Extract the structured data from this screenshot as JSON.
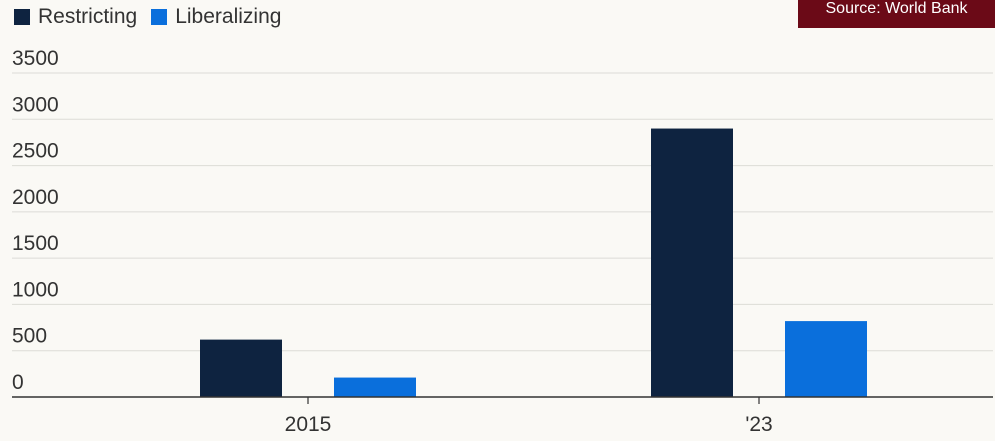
{
  "source_badge": "Source: World Bank",
  "colors": {
    "restricting": "#0e2340",
    "liberalizing": "#0a6fdc",
    "gridline": "#dcdcd6",
    "axis": "#333333",
    "badge": "#6b0a17"
  },
  "chart_data": {
    "type": "bar",
    "categories": [
      "2015",
      "'23"
    ],
    "series": [
      {
        "name": "Restricting",
        "values": [
          620,
          2900
        ]
      },
      {
        "name": "Liberalizing",
        "values": [
          210,
          820
        ]
      }
    ],
    "yticks": [
      "0",
      "500",
      "1000",
      "1500",
      "2000",
      "2500",
      "3000",
      "3500"
    ],
    "ylim": [
      0,
      3500
    ],
    "grid": true,
    "legend": "top-left",
    "title": "",
    "xlabel": "",
    "ylabel": ""
  }
}
